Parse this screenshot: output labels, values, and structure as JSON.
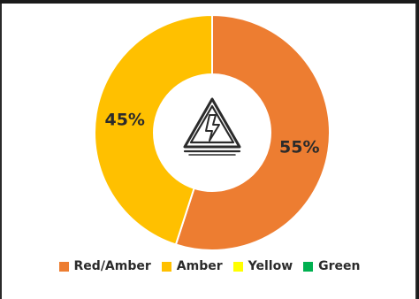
{
  "chart_data": {
    "type": "donut",
    "center_icon": "high-voltage-warning-icon",
    "slices": [
      {
        "label": "Red/Amber",
        "value": 55,
        "display": "55%",
        "color": "#ED7D31"
      },
      {
        "label": "Amber",
        "value": 45,
        "display": "45%",
        "color": "#FFC000"
      },
      {
        "label": "Yellow",
        "value": 0,
        "display": "",
        "color": "#FFFF00"
      },
      {
        "label": "Green",
        "value": 0,
        "display": "",
        "color": "#00B050"
      }
    ],
    "legend_position": "bottom"
  }
}
